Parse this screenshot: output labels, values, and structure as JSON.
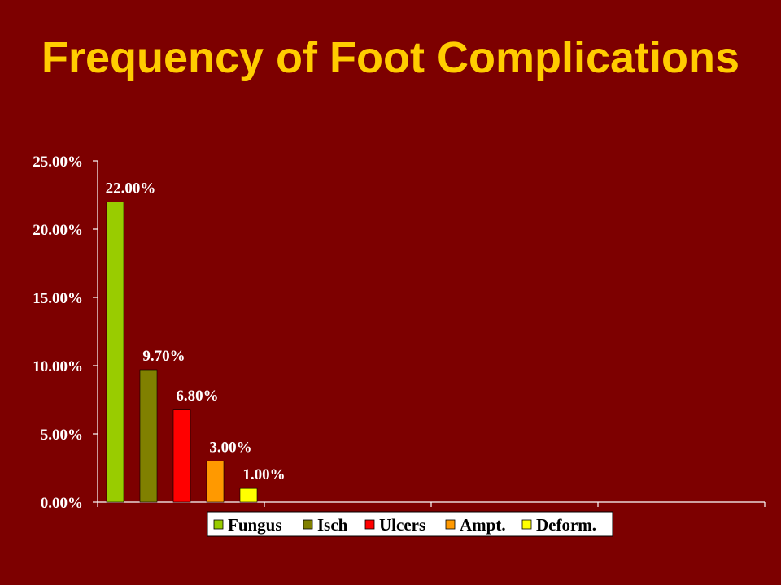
{
  "slide": {
    "background_color": "#7d0000",
    "title": "Frequency of Foot Complications",
    "title_color": "#ffcc00"
  },
  "chart_data": {
    "type": "bar",
    "title": "",
    "xlabel": "",
    "ylabel": "",
    "ylim": [
      0,
      25
    ],
    "y_ticks": [
      0,
      5,
      10,
      15,
      20,
      25
    ],
    "y_tick_labels": [
      "0.00%",
      "5.00%",
      "10.00%",
      "15.00%",
      "20.00%",
      "25.00%"
    ],
    "grid": false,
    "legend_position": "bottom",
    "series": [
      {
        "name": "Fungus",
        "value": 22.0,
        "label": "22.00%",
        "color": "#99cc00"
      },
      {
        "name": "Isch",
        "value": 9.7,
        "label": "9.70%",
        "color": "#808000"
      },
      {
        "name": "Ulcers",
        "value": 6.8,
        "label": "6.80%",
        "color": "#ff0000"
      },
      {
        "name": "Ampt.",
        "value": 3.0,
        "label": "3.00%",
        "color": "#ff9900"
      },
      {
        "name": "Deform.",
        "value": 1.0,
        "label": "1.00%",
        "color": "#ffff00"
      }
    ]
  }
}
